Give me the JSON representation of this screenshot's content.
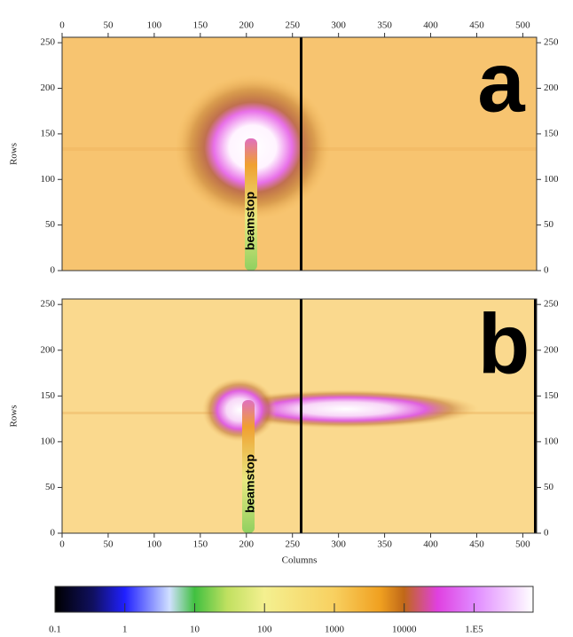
{
  "chart_data": [
    {
      "type": "image",
      "panel_label": "a",
      "annotation": "beamstop",
      "ylabel": "Rows",
      "xaxis": "top",
      "xlim": [
        0,
        515
      ],
      "ylim": [
        0,
        256
      ],
      "xticks": [
        0,
        50,
        100,
        150,
        200,
        250,
        300,
        350,
        400,
        450,
        500
      ],
      "yticks": [
        0,
        50,
        100,
        150,
        200,
        250
      ]
    },
    {
      "type": "image",
      "panel_label": "b",
      "annotation": "beamstop",
      "ylabel": "Rows",
      "xlabel": "Columns",
      "xaxis": "bottom",
      "xlim": [
        0,
        515
      ],
      "ylim": [
        0,
        256
      ],
      "xticks": [
        0,
        50,
        100,
        150,
        200,
        250,
        300,
        350,
        400,
        450,
        500
      ],
      "yticks": [
        0,
        50,
        100,
        150,
        200,
        250
      ]
    },
    {
      "type": "colorbar",
      "log": true,
      "xlim": [
        0.1,
        700000
      ],
      "xticks": [
        0.1,
        1,
        10,
        100,
        1000,
        10000,
        {
          "value": 100000,
          "label": "1.E5"
        }
      ]
    }
  ]
}
